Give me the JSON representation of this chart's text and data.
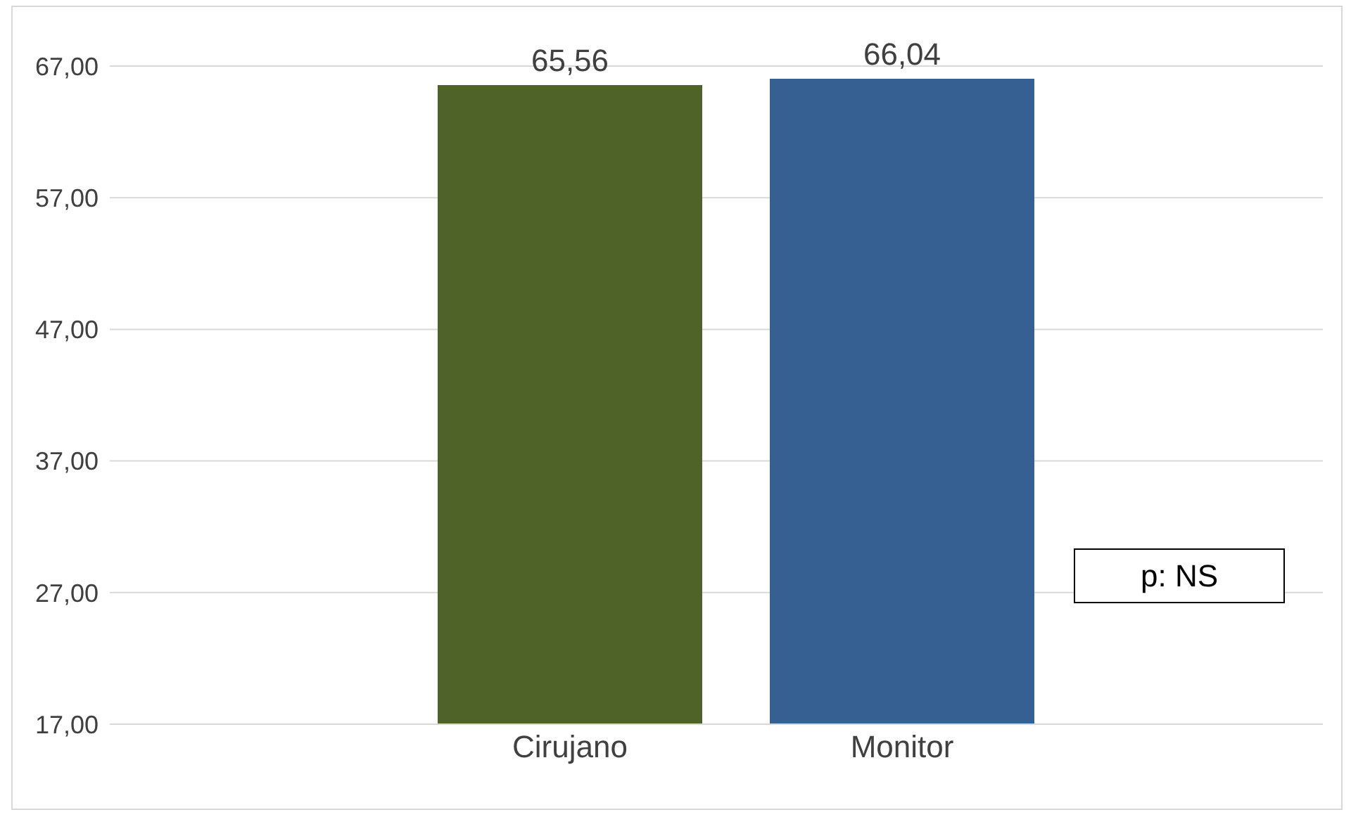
{
  "chart_data": {
    "type": "bar",
    "categories": [
      "Cirujano",
      "Monitor"
    ],
    "values": [
      65.56,
      66.04
    ],
    "colors": [
      "#4f6228",
      "#366092"
    ],
    "value_labels": [
      "65,56",
      "66,04"
    ],
    "ylim": [
      17,
      67
    ],
    "yticks": [
      {
        "value": 17,
        "label": "17,00"
      },
      {
        "value": 27,
        "label": "27,00"
      },
      {
        "value": 37,
        "label": "37,00"
      },
      {
        "value": 47,
        "label": "47,00"
      },
      {
        "value": 57,
        "label": "57,00"
      },
      {
        "value": 67,
        "label": "67,00"
      }
    ],
    "grid": "y",
    "annotations": [
      "p: NS"
    ]
  }
}
